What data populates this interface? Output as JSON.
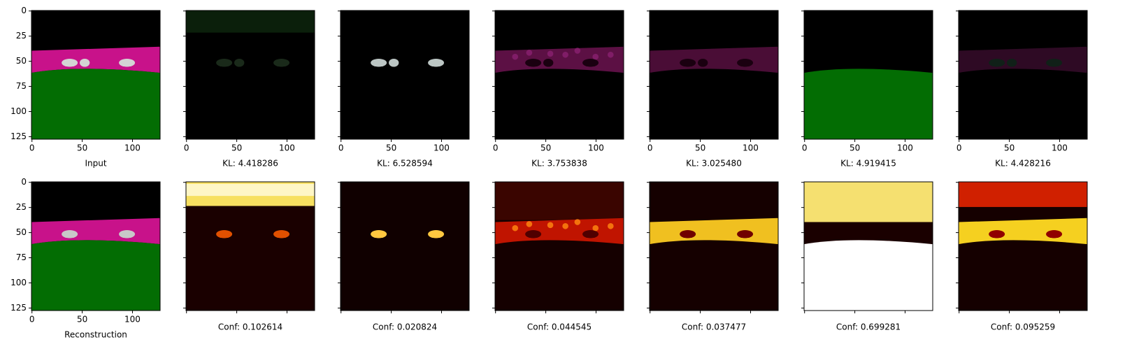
{
  "axes": {
    "xlim": [
      -0.5,
      127.5
    ],
    "ylim": [
      127.5,
      -0.5
    ],
    "xticks": [
      0,
      50,
      100
    ],
    "yticks": [
      0,
      25,
      50,
      75,
      100,
      125
    ]
  },
  "panels": {
    "top": [
      "Input",
      "KL: 4.418286",
      "KL: 6.528594",
      "KL: 3.753838",
      "KL: 3.025480",
      "KL: 4.919415",
      "KL: 4.428216"
    ],
    "bottom": [
      "Reconstruction",
      "Conf: 0.102614",
      "Conf: 0.020824",
      "Conf: 0.044545",
      "Conf: 0.037477",
      "Conf: 0.699281",
      "Conf: 0.095259"
    ]
  }
}
